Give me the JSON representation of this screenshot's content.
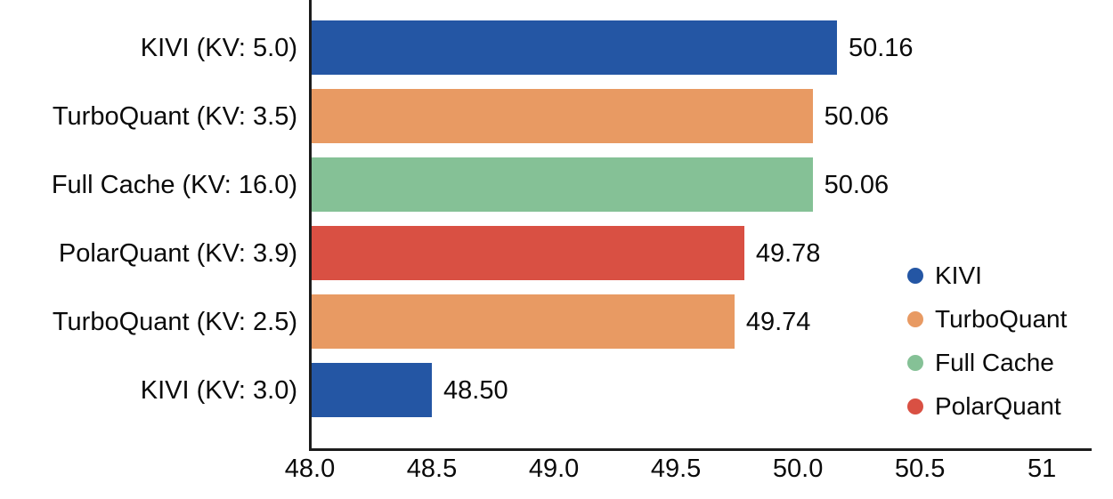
{
  "chart_data": {
    "type": "bar",
    "orientation": "horizontal",
    "title": "",
    "xlabel": "",
    "ylabel": "",
    "xlim": [
      48.0,
      51.2
    ],
    "grid": false,
    "axis_color": "#1c1c1c",
    "x_ticks": [
      {
        "label": "48.0",
        "value": 48.0
      },
      {
        "label": "48.5",
        "value": 48.5
      },
      {
        "label": "49.0",
        "value": 49.0
      },
      {
        "label": "49.5",
        "value": 49.5
      },
      {
        "label": "50.0",
        "value": 50.0
      },
      {
        "label": "50.5",
        "value": 50.5
      },
      {
        "label": "51",
        "value": 51.0
      }
    ],
    "bars": [
      {
        "label": "KIVI (KV: 5.0)",
        "value": 50.16,
        "value_label": "50.16",
        "series": "KIVI"
      },
      {
        "label": "TurboQuant (KV: 3.5)",
        "value": 50.06,
        "value_label": "50.06",
        "series": "TurboQuant"
      },
      {
        "label": "Full Cache (KV: 16.0)",
        "value": 50.06,
        "value_label": "50.06",
        "series": "Full Cache"
      },
      {
        "label": "PolarQuant (KV: 3.9)",
        "value": 49.78,
        "value_label": "49.78",
        "series": "PolarQuant"
      },
      {
        "label": "TurboQuant (KV: 2.5)",
        "value": 49.74,
        "value_label": "49.74",
        "series": "TurboQuant"
      },
      {
        "label": "KIVI (KV: 3.0)",
        "value": 48.5,
        "value_label": "48.50",
        "series": "KIVI"
      }
    ],
    "series_colors": {
      "KIVI": "#2456A4",
      "TurboQuant": "#E89A63",
      "Full Cache": "#85C196",
      "PolarQuant": "#D95043"
    },
    "legend": {
      "position": "right-bottom",
      "entries": [
        {
          "label": "KIVI",
          "color": "#2456A4"
        },
        {
          "label": "TurboQuant",
          "color": "#E89A63"
        },
        {
          "label": "Full Cache",
          "color": "#85C196"
        },
        {
          "label": "PolarQuant",
          "color": "#D95043"
        }
      ]
    }
  }
}
